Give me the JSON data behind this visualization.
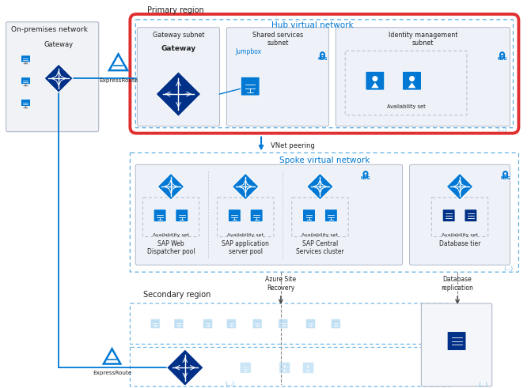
{
  "bg_color": "#ffffff",
  "primary_region_label": "Primary region",
  "secondary_region_label": "Secondary region",
  "hub_vnet_label": "Hub virtual network",
  "spoke_vnet_label": "Spoke virtual network",
  "on_premises_label": "On-premises network",
  "gateway_label": "Gateway",
  "expressroute_label": "ExpressRoute",
  "vnet_peering_label": "VNet peering",
  "azure_site_recovery_label": "Azure Site\nRecovery",
  "database_replication_label": "Database\nreplication",
  "gateway_subnet_label": "Gateway subnet",
  "shared_services_subnet_label": "Shared services\nsubnet",
  "identity_mgmt_subnet_label": "Identity management\nsubnet",
  "jumpbox_label": "Jumpbox",
  "nsg_label": "NSG",
  "availability_set_label": "Availability set",
  "sap_web_label": "SAP Web\nDispatcher pool",
  "sap_app_label": "SAP application\nserver pool",
  "sap_central_label": "SAP Central\nServices cluster",
  "database_tier_label": "Database tier",
  "blue_dark": "#003087",
  "blue_mid": "#0078d4",
  "blue_light": "#5dade2",
  "blue_pale": "#a8d4f0",
  "red_border": "#e03030",
  "gray_bg": "#f2f4f8",
  "gray_mid": "#c0c8d0",
  "text_dark": "#222222",
  "text_blue": "#0078d4",
  "ellipsis": "⟨...⟩"
}
